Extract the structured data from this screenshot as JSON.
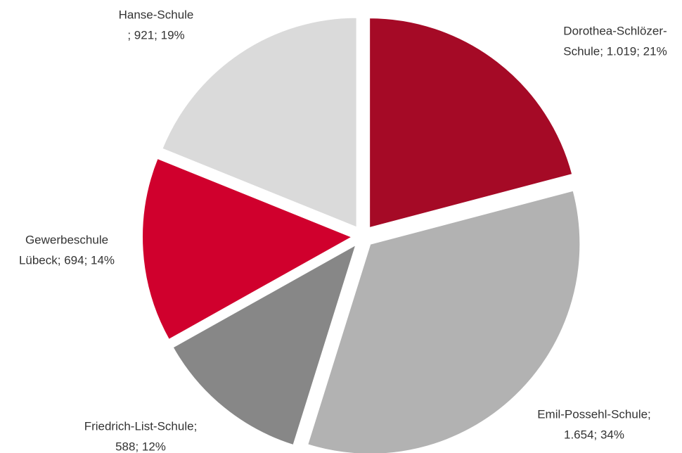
{
  "chart_data": {
    "type": "pie",
    "categories": [
      "Dorothea-Schlözer-Schule",
      "Emil-Possehl-Schule",
      "Friedrich-List-Schule",
      "Gewerbeschule Lübeck",
      "Hanse-Schule"
    ],
    "values": [
      1019,
      1654,
      588,
      694,
      921
    ],
    "data_labels": [
      [
        "Dorothea-Schlözer-",
        "Schule; 1.019; 21%"
      ],
      [
        "Emil-Possehl-Schule;",
        "1.654; 34%"
      ],
      [
        "Friedrich-List-Schule;",
        "588; 12%"
      ],
      [
        "Gewerbeschule",
        "Lübeck; 694; 14%"
      ],
      [
        "Hanse-Schule",
        "; 921; 19%"
      ]
    ],
    "colors": [
      "#a50a26",
      "#b2b2b2",
      "#878787",
      "#d0002d",
      "#dadada"
    ]
  }
}
